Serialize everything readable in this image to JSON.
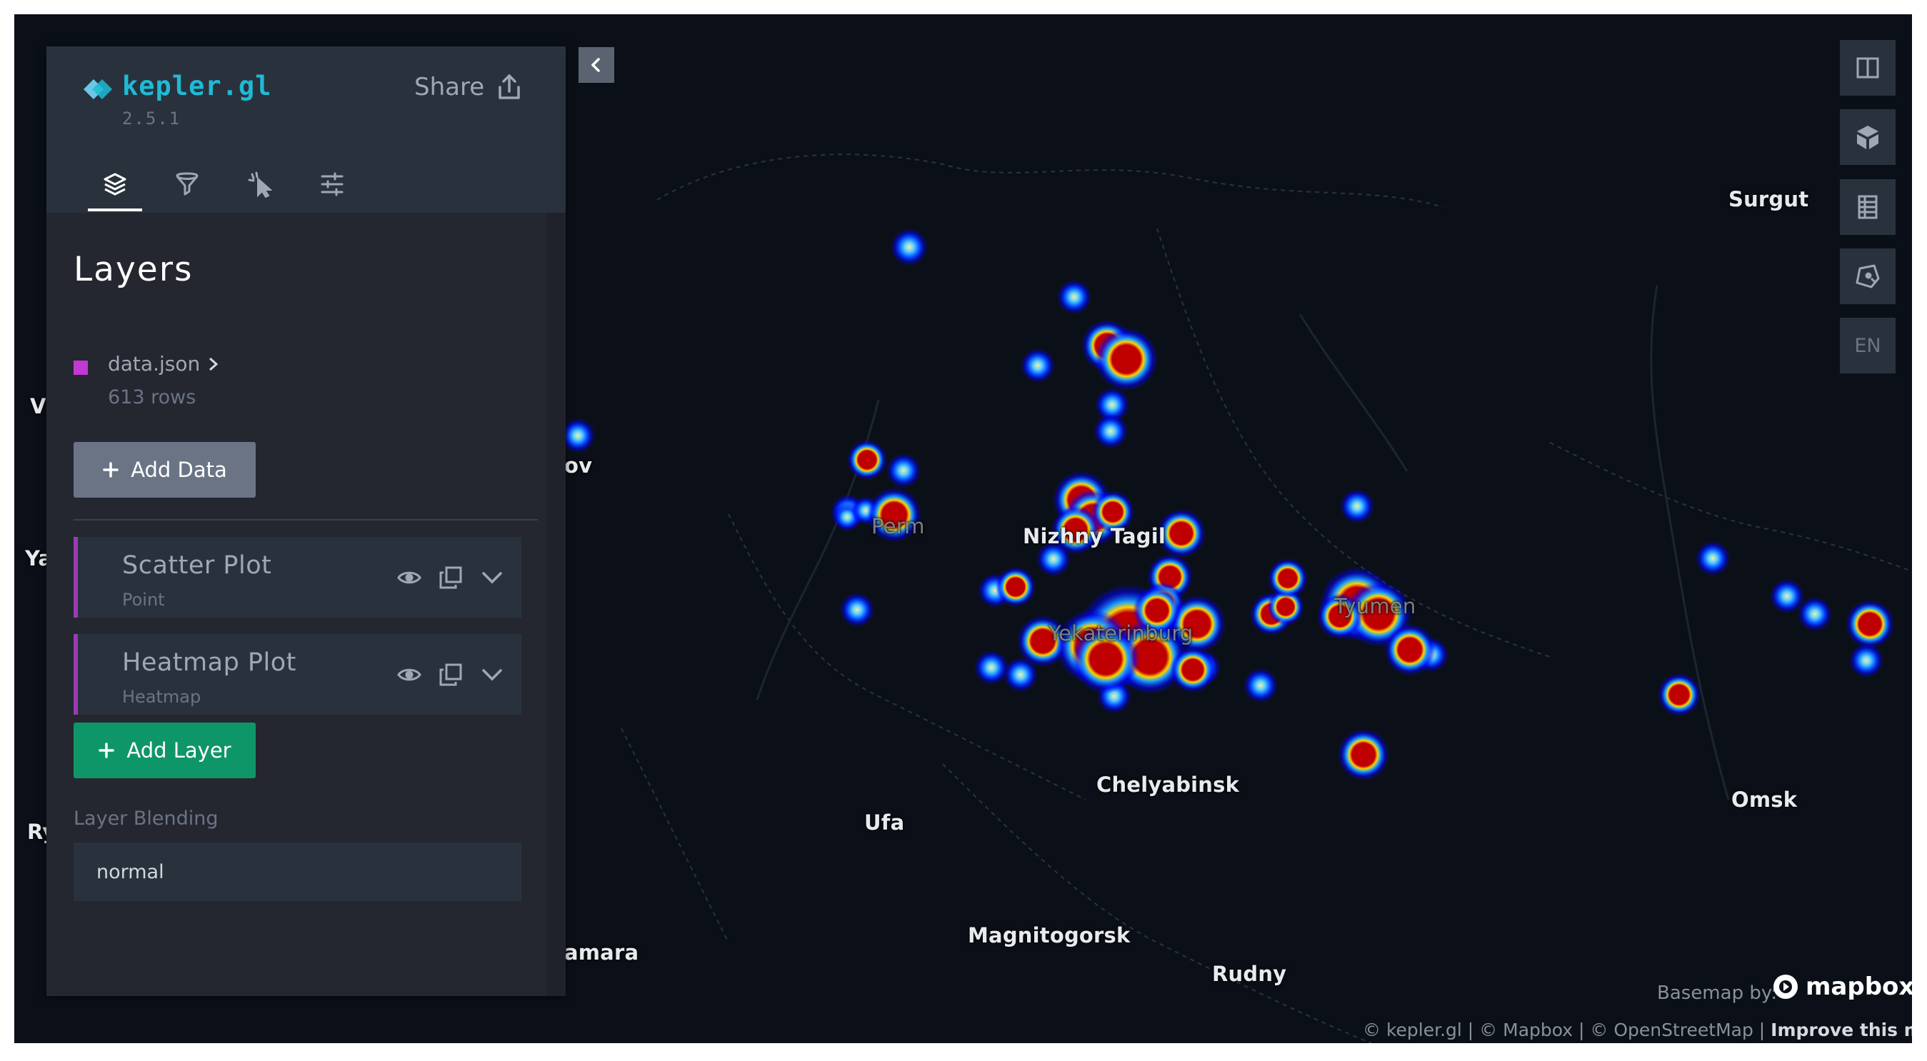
{
  "app": {
    "name": "kepler.gl",
    "version": "2.5.1",
    "share_label": "Share"
  },
  "tabs": [
    {
      "name": "layers",
      "icon": "layers-icon",
      "active": true
    },
    {
      "name": "filters",
      "icon": "filter-icon",
      "active": false
    },
    {
      "name": "interactions",
      "icon": "cursor-icon",
      "active": false
    },
    {
      "name": "base-map",
      "icon": "sliders-icon",
      "active": false
    }
  ],
  "layers_panel": {
    "title": "Layers",
    "dataset": {
      "name": "data.json",
      "rows": "613 rows",
      "color": "#c238d3"
    },
    "add_data_label": "Add Data",
    "layers": [
      {
        "name": "Scatter Plot",
        "type": "Point"
      },
      {
        "name": "Heatmap Plot",
        "type": "Heatmap"
      }
    ],
    "add_layer_label": "Add Layer",
    "blending_label": "Layer Blending",
    "blending_value": "normal"
  },
  "map_controls": {
    "language": "EN"
  },
  "map_labels": {
    "surgut": "Surgut",
    "perm": "Perm",
    "nizhny_tagil": "Nizhny Tagil",
    "yekaterinburg": "Yekaterinburg",
    "tyumen": "Tyumen",
    "chelyabinsk": "Chelyabinsk",
    "ufa": "Ufa",
    "omsk": "Omsk",
    "magnitogorsk": "Magnitogorsk",
    "rudny": "Rudny",
    "samara_partial": "amara",
    "ov_partial": "ov",
    "v_partial": "V",
    "ya_partial": "Ya",
    "ry_partial": "Ry"
  },
  "attribution": {
    "basemap_by": "Basemap by:",
    "mapbox": "mapbox",
    "credits": "© kepler.gl | © Mapbox | © OpenStreetMap | ",
    "improve": "Improve this map"
  },
  "colors": {
    "accent": "#1fbad6",
    "panel": "#242730",
    "panel_header": "#29323c",
    "add_layer_green": "#0f9668",
    "layer_bar": "#9b3bb3",
    "map_bg": "#0b1018"
  }
}
